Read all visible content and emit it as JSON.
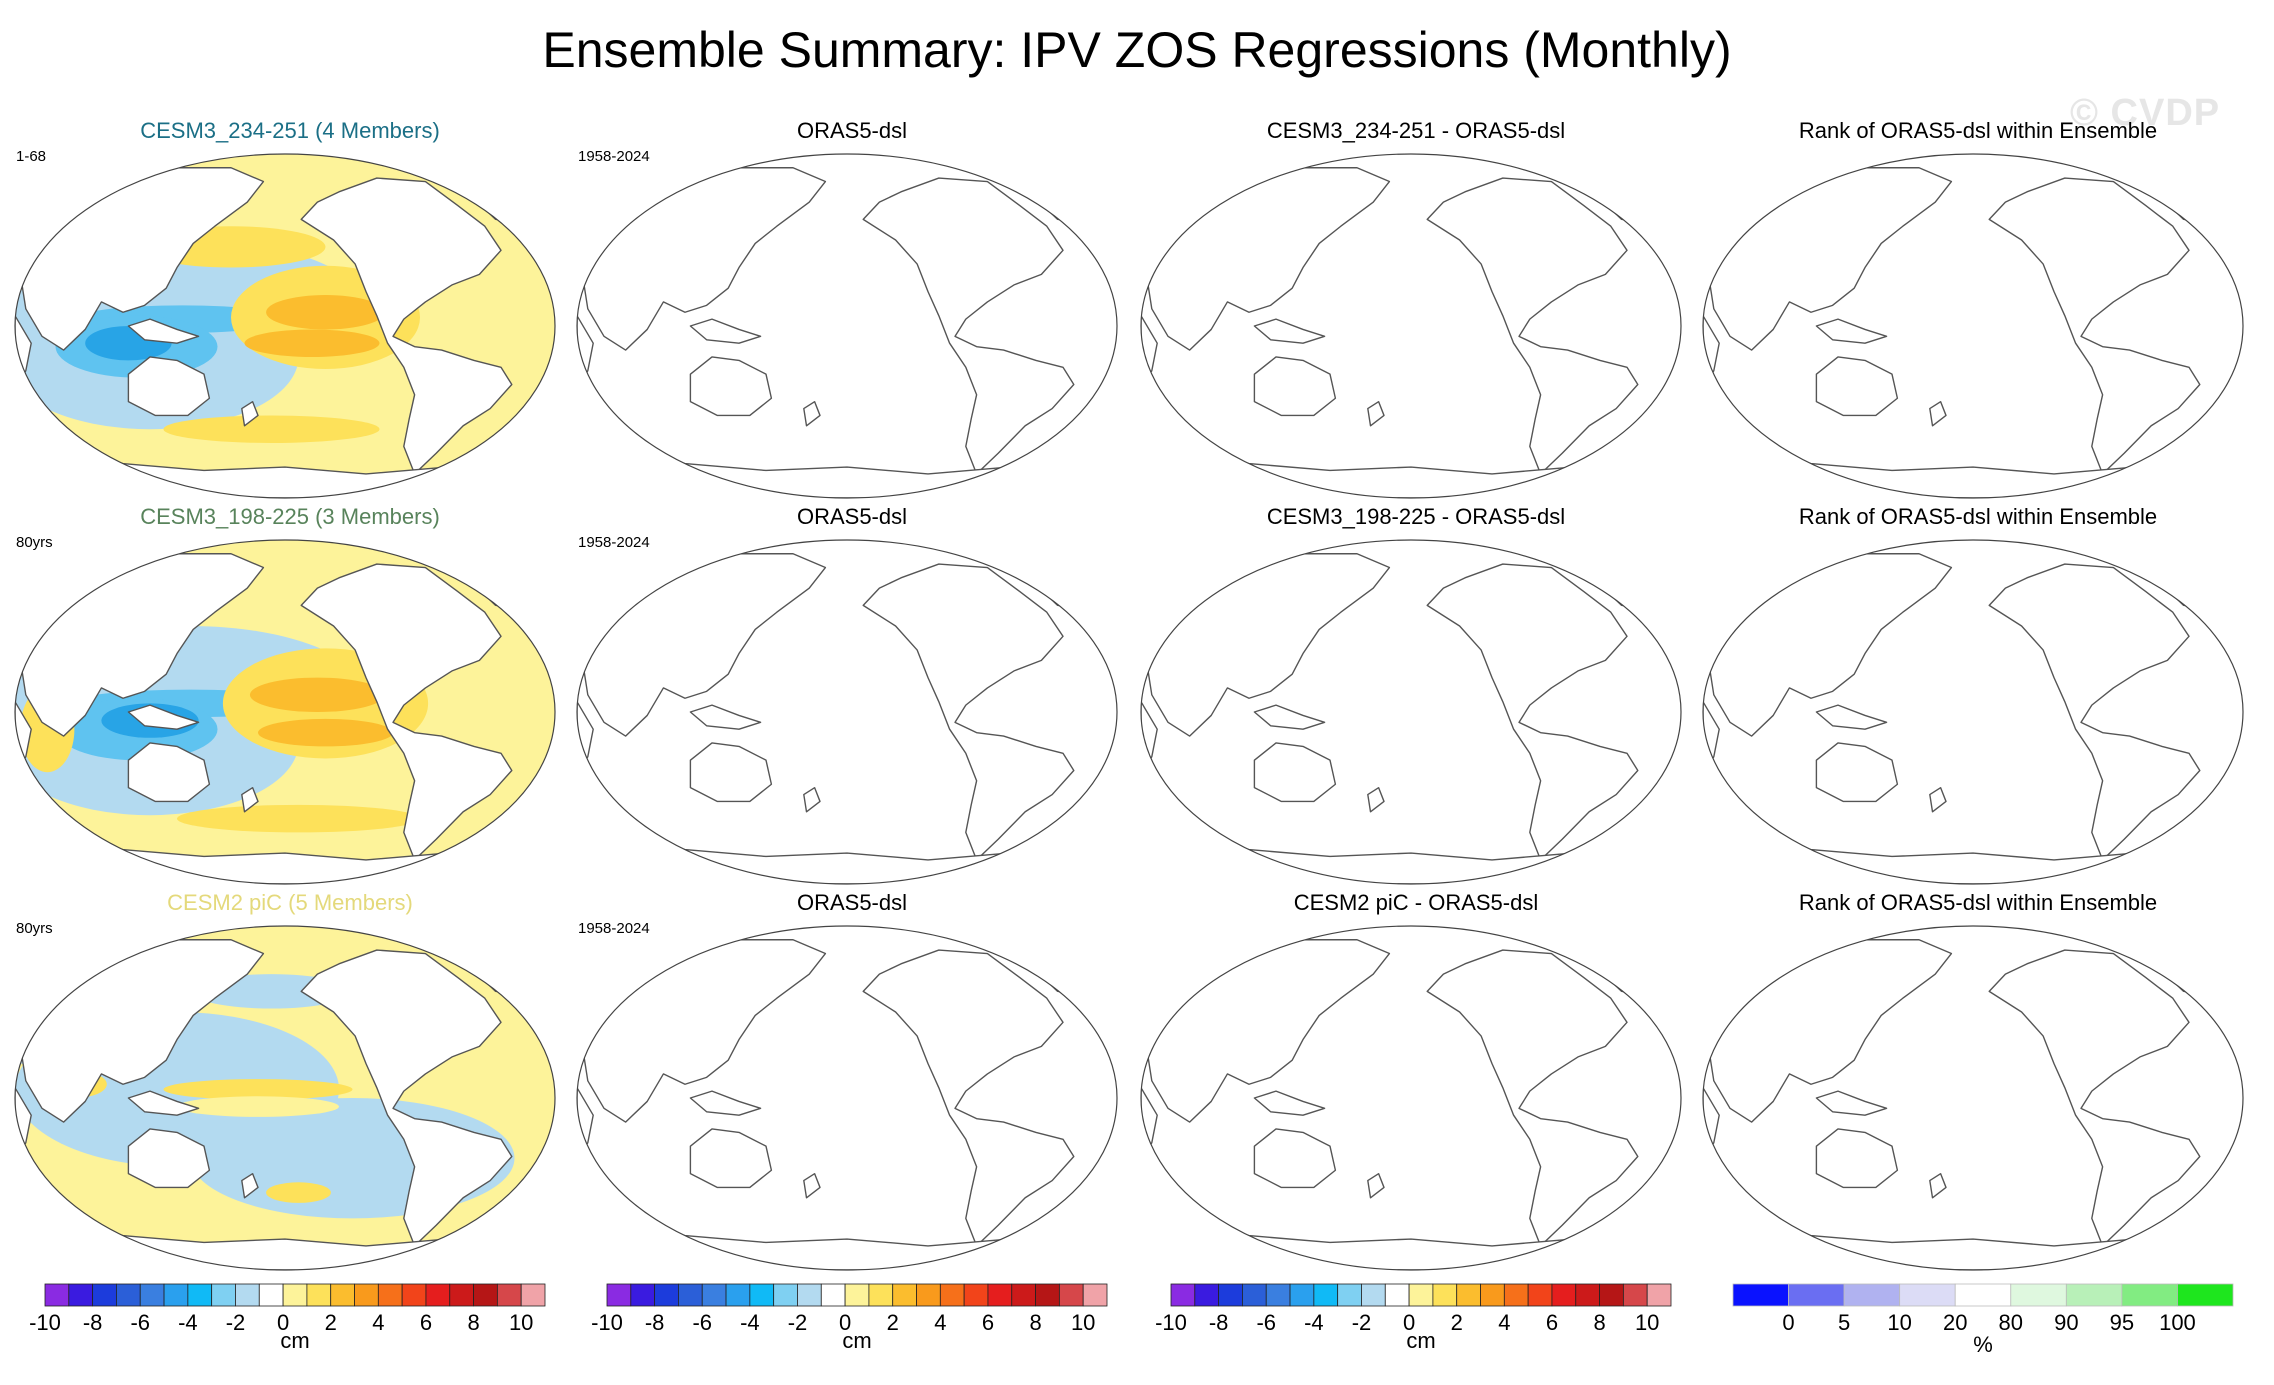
{
  "figure": {
    "title": "Ensemble Summary: IPV ZOS Regressions (Monthly)",
    "watermark": "© CVDP"
  },
  "colors": {
    "ocean_pos_light": "#fdf39a",
    "ocean_pos_mid": "#fde15a",
    "ocean_pos_strong": "#fbbd2e",
    "ocean_neg_light": "#b3daf0",
    "ocean_neg_mid": "#5fc3f0",
    "ocean_neg_strong": "#28a4e6",
    "land": "#ffffff",
    "coast": "#555555",
    "title_row1": "#1b6f86",
    "title_row2": "#58835b",
    "title_row3": "#e4d97b"
  },
  "rows": [
    {
      "model_title": "CESM3_234-251 (4 Members)",
      "model_period": "1-68",
      "obs_title": "ORAS5-dsl",
      "obs_period": "1958-2024",
      "diff_title": "CESM3_234-251 - ORAS5-dsl",
      "rank_title": "Rank of ORAS5-dsl within Ensemble"
    },
    {
      "model_title": "CESM3_198-225 (3 Members)",
      "model_period": "80yrs",
      "obs_title": "ORAS5-dsl",
      "obs_period": "1958-2024",
      "diff_title": "CESM3_198-225 - ORAS5-dsl",
      "rank_title": "Rank of ORAS5-dsl within Ensemble"
    },
    {
      "model_title": "CESM2 piC (5 Members)",
      "model_period": "80yrs",
      "obs_title": "ORAS5-dsl",
      "obs_period": "1958-2024",
      "diff_title": "CESM2 piC - ORAS5-dsl",
      "rank_title": "Rank of ORAS5-dsl within Ensemble"
    }
  ],
  "chart_data": [
    {
      "type": "heatmap",
      "name": "regression colorbar",
      "unit": "cm",
      "ticks": [
        "-10",
        "-8",
        "-6",
        "-4",
        "-2",
        "0",
        "2",
        "4",
        "6",
        "8",
        "10"
      ],
      "levels": [
        -11,
        -10,
        -9,
        -8,
        -7,
        -6,
        -5,
        -4,
        -3,
        -2,
        -1,
        0,
        1,
        2,
        3,
        4,
        5,
        6,
        7,
        8,
        9,
        10,
        11
      ],
      "colors": [
        "#8a2be2",
        "#3a1be0",
        "#1c3cdc",
        "#2b5fd8",
        "#3a7fe0",
        "#2aa0ee",
        "#10baf6",
        "#7fd0f2",
        "#b3daf0",
        "#ffffff",
        "#fdf39a",
        "#fde15a",
        "#fbbd2e",
        "#f99a1c",
        "#f6701a",
        "#f2441a",
        "#e51e1e",
        "#cc1a1a",
        "#b51616",
        "#d6474a",
        "#f0a3a8"
      ]
    },
    {
      "type": "heatmap",
      "name": "rank colorbar",
      "unit": "%",
      "ticks": [
        "0",
        "5",
        "10",
        "20",
        "80",
        "90",
        "95",
        "100"
      ],
      "tick_values": [
        0,
        5,
        10,
        20,
        80,
        90,
        95,
        100
      ],
      "colors": [
        "#0a12ff",
        "#6a6ef2",
        "#b0b2f0",
        "#dcdcf6",
        "#ffffff",
        "#dff8df",
        "#b8f0b8",
        "#82ec82",
        "#1ee61e"
      ]
    }
  ]
}
